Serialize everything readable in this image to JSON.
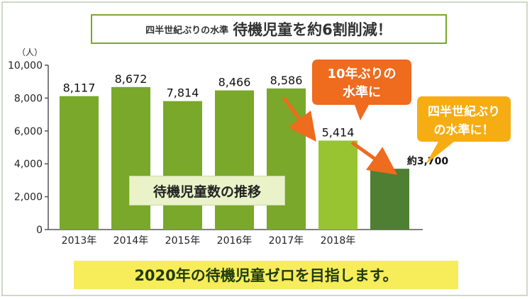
{
  "title": {
    "prefix": "四半世紀ぶりの水準",
    "main": "待機児童を約6割削減！"
  },
  "chart_data": {
    "type": "bar",
    "yunit": "（人）",
    "ylim": [
      0,
      10000
    ],
    "yticks": [
      0,
      2000,
      4000,
      6000,
      8000,
      10000
    ],
    "ytick_labels": [
      "0",
      "2,000",
      "4,000",
      "6,000",
      "8,000",
      "10,000"
    ],
    "categories": [
      "2013年",
      "2014年",
      "2015年",
      "2016年",
      "2017年",
      "2018年",
      ""
    ],
    "values": [
      8117,
      8672,
      7814,
      8466,
      8586,
      5414,
      3700
    ],
    "value_labels": [
      "8,117",
      "8,672",
      "7,814",
      "8,466",
      "8,586",
      "5,414",
      "約3,700"
    ],
    "bar_colors": [
      "#7aa82a",
      "#7aa82a",
      "#7aa82a",
      "#7aa82a",
      "#7aa82a",
      "#99c432",
      "#4f7f33"
    ],
    "legend_label": "待機児童数の推移",
    "grid": false,
    "annotations": [
      {
        "lines": [
          "10年ぶりの",
          "水準に"
        ],
        "color": "#ef6b1e"
      },
      {
        "lines": [
          "四半世紀ぶり",
          "の水準に！"
        ],
        "color": "#f6ad13"
      }
    ]
  },
  "footer": "2020年の待機児童ゼロを目指します。",
  "colors": {
    "bar": "#7aa82a",
    "bar_2018": "#99c432",
    "bar_projection": "#4f7f33",
    "arrow": "#ef6b1e",
    "footer_bg": "#f7ec5a",
    "title_border": "#7aa82a"
  }
}
